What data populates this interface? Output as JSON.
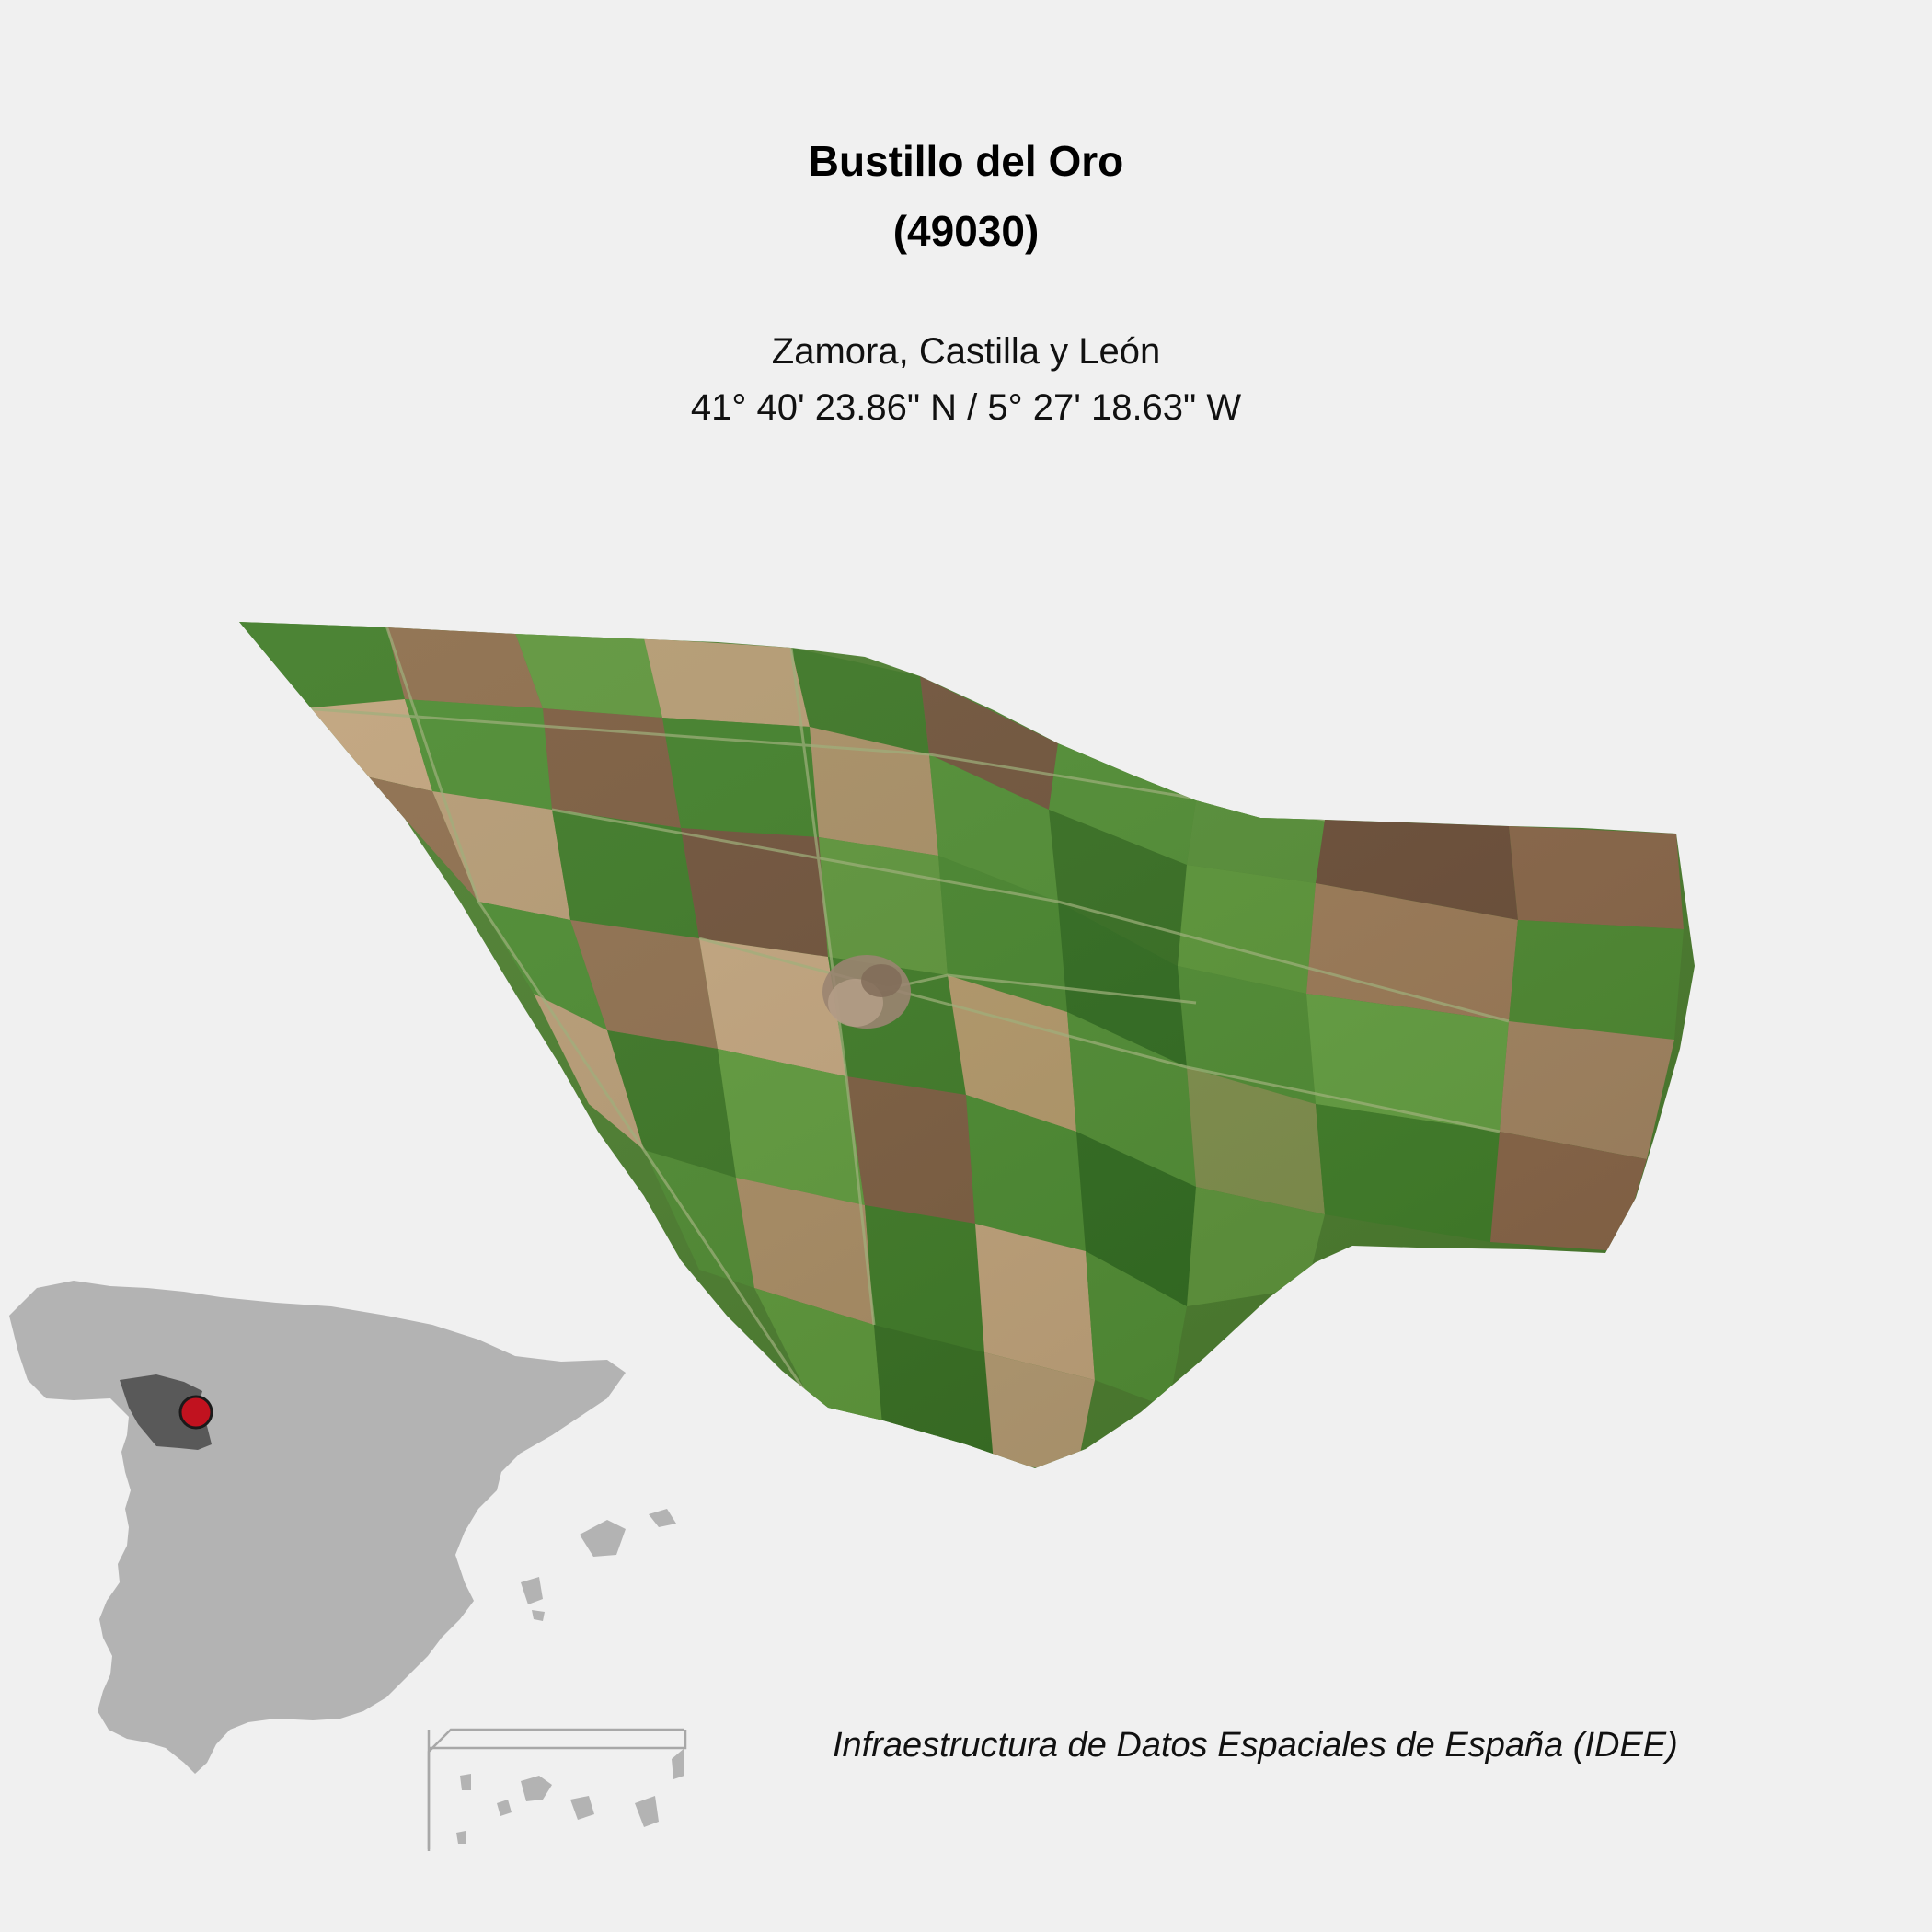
{
  "map": {
    "title": "Bustillo del Oro",
    "code": "(49030)",
    "region": "Zamora, Castilla y León",
    "coordinates": "41° 40' 23.86\" N / 5° 27' 18.63\" W",
    "credit": "Infraestructura de Datos Espaciales de España (IDEE)"
  },
  "colors": {
    "background": "#f0f0f0",
    "spain": "#b3b3b3",
    "province": "#595959",
    "marker": "#c1121f",
    "field_green_dark": "#2f6b1d",
    "field_green": "#4a8a2e",
    "field_brown": "#7a5a3c",
    "field_tan": "#b99c72"
  },
  "icons": {
    "location_marker": "red-circle-marker"
  }
}
